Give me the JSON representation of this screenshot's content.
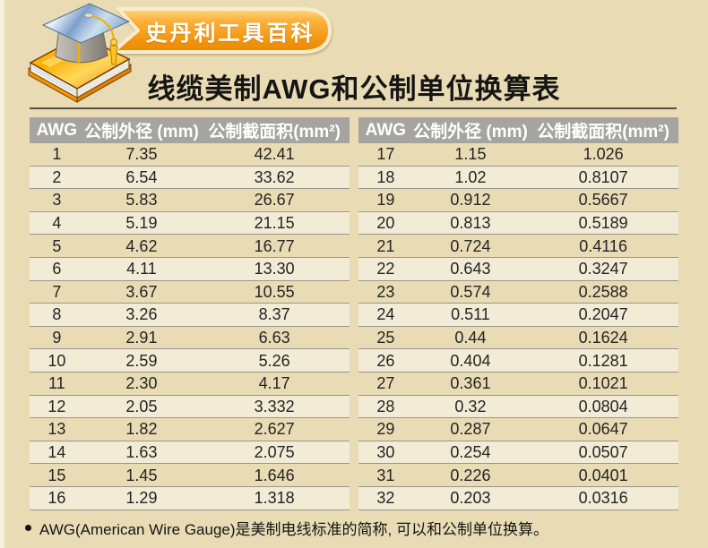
{
  "brand": {
    "badge_label": "史丹利工具百科"
  },
  "title": "线缆美制AWG和公制单位换算表",
  "table": {
    "headers": [
      "AWG",
      "公制外径 (mm)",
      "公制截面积(mm²)"
    ],
    "left_rows": [
      [
        "1",
        "7.35",
        "42.41"
      ],
      [
        "2",
        "6.54",
        "33.62"
      ],
      [
        "3",
        "5.83",
        "26.67"
      ],
      [
        "4",
        "5.19",
        "21.15"
      ],
      [
        "5",
        "4.62",
        "16.77"
      ],
      [
        "6",
        "4.11",
        "13.30"
      ],
      [
        "7",
        "3.67",
        "10.55"
      ],
      [
        "8",
        "3.26",
        "8.37"
      ],
      [
        "9",
        "2.91",
        "6.63"
      ],
      [
        "10",
        "2.59",
        "5.26"
      ],
      [
        "11",
        "2.30",
        "4.17"
      ],
      [
        "12",
        "2.05",
        "3.332"
      ],
      [
        "13",
        "1.82",
        "2.627"
      ],
      [
        "14",
        "1.63",
        "2.075"
      ],
      [
        "15",
        "1.45",
        "1.646"
      ],
      [
        "16",
        "1.29",
        "1.318"
      ]
    ],
    "right_rows": [
      [
        "17",
        "1.15",
        "1.026"
      ],
      [
        "18",
        "1.02",
        "0.8107"
      ],
      [
        "19",
        "0.912",
        "0.5667"
      ],
      [
        "20",
        "0.813",
        "0.5189"
      ],
      [
        "21",
        "0.724",
        "0.4116"
      ],
      [
        "22",
        "0.643",
        "0.3247"
      ],
      [
        "23",
        "0.574",
        "0.2588"
      ],
      [
        "24",
        "0.511",
        "0.2047"
      ],
      [
        "25",
        "0.44",
        "0.1624"
      ],
      [
        "26",
        "0.404",
        "0.1281"
      ],
      [
        "27",
        "0.361",
        "0.1021"
      ],
      [
        "28",
        "0.32",
        "0.0804"
      ],
      [
        "29",
        "0.287",
        "0.0647"
      ],
      [
        "30",
        "0.254",
        "0.0507"
      ],
      [
        "31",
        "0.226",
        "0.0401"
      ],
      [
        "32",
        "0.203",
        "0.0316"
      ]
    ]
  },
  "footnote": "AWG(American Wire Gauge)是美制电线标准的简称, 可以和公制单位换算。",
  "colors": {
    "page_bg": "#e9dcb5",
    "row_alt_bg": "#f2ebd6",
    "header_bg": "#a5a4a0",
    "header_text": "#ffffff",
    "title_rule": "#514f47",
    "row_divider": "#97968e",
    "badge_orange": "#f0920a",
    "badge_orange_light": "#ffd887",
    "badge_border": "#f7edcd",
    "badge_text": "#ffffff",
    "body_text": "#242424"
  }
}
